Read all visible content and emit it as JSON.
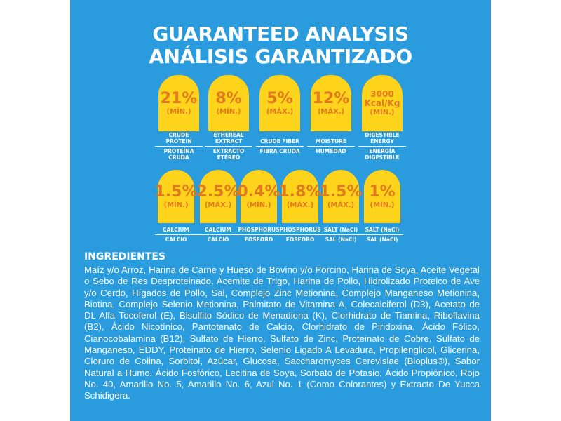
{
  "titles": {
    "en": "GUARANTEED ANALYSIS",
    "es": "ANÁLISIS GARANTIZADO"
  },
  "row1": [
    {
      "value": "21%",
      "qualifier": "(MÍN.)",
      "label_en": "CRUDE PROTEIN",
      "label_es": "PROTEÍNA CRUDA"
    },
    {
      "value": "8%",
      "qualifier": "(MÍN.)",
      "label_en": "ETHEREAL EXTRACT",
      "label_es": "EXTRACTO ETÉREO"
    },
    {
      "value": "5%",
      "qualifier": "(MÁX.)",
      "label_en": "CRUDE FIBER",
      "label_es": "FIBRA CRUDA"
    },
    {
      "value": "12%",
      "qualifier": "(MÁX.)",
      "label_en": "MOISTURE",
      "label_es": "HUMEDAD"
    },
    {
      "value": "3000 Kcal/Kg",
      "qualifier": "(MÍN.)",
      "label_en": "DIGESTIBLE ENERGY",
      "label_es": "ENERGÍA DIGESTIBLE"
    }
  ],
  "row2": [
    {
      "value": "1.5%",
      "qualifier": "(MÍN.)",
      "label_en": "CALCIUM",
      "label_es": "CALCIO"
    },
    {
      "value": "2.5%",
      "qualifier": "(MÁX.)",
      "label_en": "CALCIUM",
      "label_es": "CALCIO"
    },
    {
      "value": "0.4%",
      "qualifier": "(MÍN.)",
      "label_en": "PHOSPHORUS",
      "label_es": "FÓSFORO"
    },
    {
      "value": "1.8%",
      "qualifier": "(MÁX.)",
      "label_en": "PHOSPHORUS",
      "label_es": "FÓSFORO"
    },
    {
      "value": "1.5%",
      "qualifier": "(MÁX.)",
      "label_en": "SALT (NaCl)",
      "label_es": "SAL (NaCl)"
    },
    {
      "value": "1%",
      "qualifier": "(MÍN.)",
      "label_en": "SALT (NaCl)",
      "label_es": "SAL (NaCl)"
    }
  ],
  "ingredients": {
    "title": "INGREDIENTES",
    "text": "Maíz y/o Arroz, Harina de Carne y Hueso de Bovino y/o Porcino, Harina de Soya, Aceite Vegetal o Sebo de Res Desproteinado, Acemite de Trigo, Harina de Pollo, Hidrolizado Proteico de Ave y/o Cerdo, Hígados de Pollo, Sal, Complejo Zinc Metionina, Complejo Manganeso Metionina, Biotina, Complejo Selenio Metionina, Palmitato de Vitamina A, Colecalciferol (D3), Acetato de DL Alfa Tocoferol (E), Bisulfito Sódico de Menadiona (K), Clorhidrato de Tiamina, Riboflavina (B2), Ácido Nicotínico, Pantotenato de Calcio, Clorhidrato de Piridoxina, Ácido Fólico, Cianocobalamina (B12), Sulfato de Hierro, Sulfato de Zinc, Proteinato de Cobre, Sulfato de Manganeso, EDDY, Proteinato de Hierro, Selenio Ligado A Levadura, Propilenglicol, Glicerina, Cloruro de Colina, Sorbitol, Azúcar, Glucosa, Saccharomyces Cerevisiae (Bioplus®), Sabor Natural a Humo, Ácido Fosfórico, Lecitina de Soya, Sorbato de Potasio, Ácido Propiónico, Rojo No. 40, Amarillo No. 5, Amarillo No. 6, Azul No. 1 (Como Colorantes) y Extracto De Yucca Schidigera."
  },
  "colors": {
    "background": "#2a9bdc",
    "badge": "#fdd31c",
    "badge_text": "#e2791d"
  }
}
